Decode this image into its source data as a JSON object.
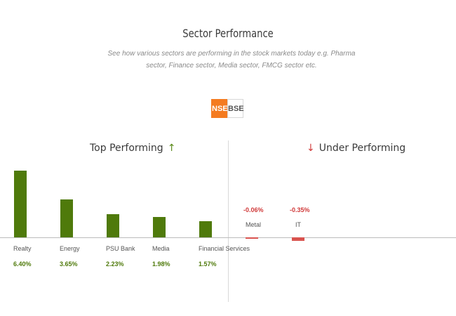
{
  "header": {
    "title": "Sector Performance",
    "subtitle": "See how various sectors are performing in the stock markets today e.g. Pharma sector, Finance sector, Media sector, FMCG sector etc."
  },
  "exchange_toggle": {
    "options": [
      "NSE",
      "BSE"
    ],
    "selected": "NSE",
    "active_color": "#f47b20"
  },
  "top_performing": {
    "heading": "Top Performing",
    "arrow_icon": "arrow-up-icon",
    "sectors": [
      {
        "name": "Realty",
        "change": "6.40%",
        "value": 6.4
      },
      {
        "name": "Energy",
        "change": "3.65%",
        "value": 3.65
      },
      {
        "name": "PSU Bank",
        "change": "2.23%",
        "value": 2.23
      },
      {
        "name": "Media",
        "change": "1.98%",
        "value": 1.98
      },
      {
        "name": "Financial Services",
        "change": "1.57%",
        "value": 1.57
      }
    ],
    "bar_color": "#4f7a0b"
  },
  "under_performing": {
    "heading": "Under Performing",
    "arrow_icon": "arrow-down-icon",
    "sectors": [
      {
        "name": "Metal",
        "change": "-0.06%",
        "value": -0.06
      },
      {
        "name": "IT",
        "change": "-0.35%",
        "value": -0.35
      }
    ],
    "bar_color": "#d9534f"
  }
}
